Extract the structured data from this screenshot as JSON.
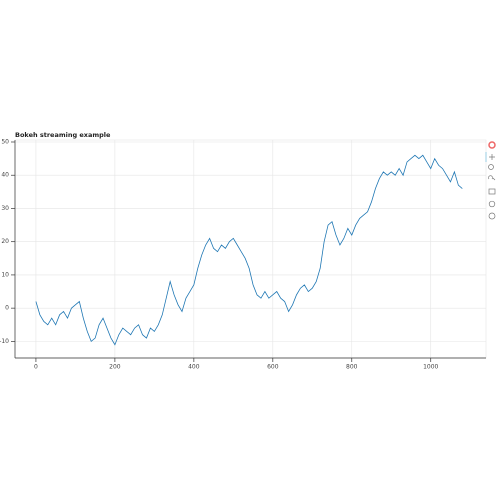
{
  "chart_data": {
    "type": "line",
    "title": "Bokeh streaming example",
    "x": [
      0,
      10,
      20,
      30,
      40,
      50,
      60,
      70,
      80,
      90,
      100,
      110,
      120,
      130,
      140,
      150,
      160,
      170,
      180,
      190,
      200,
      210,
      220,
      230,
      240,
      250,
      260,
      270,
      280,
      290,
      300,
      310,
      320,
      330,
      340,
      350,
      360,
      370,
      380,
      390,
      400,
      410,
      420,
      430,
      440,
      450,
      460,
      470,
      480,
      490,
      500,
      510,
      520,
      530,
      540,
      550,
      560,
      570,
      580,
      590,
      600,
      610,
      620,
      630,
      640,
      650,
      660,
      670,
      680,
      690,
      700,
      710,
      720,
      730,
      740,
      750,
      760,
      770,
      780,
      790,
      800,
      810,
      820,
      830,
      840,
      850,
      860,
      870,
      880,
      890,
      900,
      910,
      920,
      930,
      940,
      950,
      960,
      970,
      980,
      990,
      1000,
      1010,
      1020,
      1030,
      1040,
      1050,
      1060,
      1070,
      1080
    ],
    "values": [
      2,
      -2,
      -4,
      -5,
      -3,
      -5,
      -2,
      -1,
      -3,
      0,
      1,
      2,
      -3,
      -7,
      -10,
      -9,
      -5,
      -3,
      -6,
      -9,
      -11,
      -8,
      -6,
      -7,
      -8,
      -6,
      -5,
      -8,
      -9,
      -6,
      -7,
      -5,
      -2,
      3,
      8,
      4,
      1,
      -1,
      3,
      5,
      7,
      12,
      16,
      19,
      21,
      18,
      17,
      19,
      18,
      20,
      21,
      19,
      17,
      15,
      12,
      7,
      4,
      3,
      5,
      3,
      4,
      5,
      3,
      2,
      -1,
      1,
      4,
      6,
      7,
      5,
      6,
      8,
      12,
      20,
      25,
      26,
      22,
      19,
      21,
      24,
      22,
      25,
      27,
      28,
      29,
      32,
      36,
      39,
      41,
      40,
      41,
      40,
      42,
      40,
      44,
      45,
      46,
      45,
      46,
      44,
      42,
      45,
      43,
      42,
      40,
      38,
      41,
      37,
      36
    ],
    "color": "#1f77b4",
    "xlim": [
      -53,
      1140
    ],
    "ylim": [
      -15,
      50.6
    ],
    "xticks": [
      0,
      200,
      400,
      600,
      800,
      1000
    ],
    "yticks": [
      -10,
      0,
      10,
      20,
      30,
      40,
      50
    ],
    "grid": true
  }
}
